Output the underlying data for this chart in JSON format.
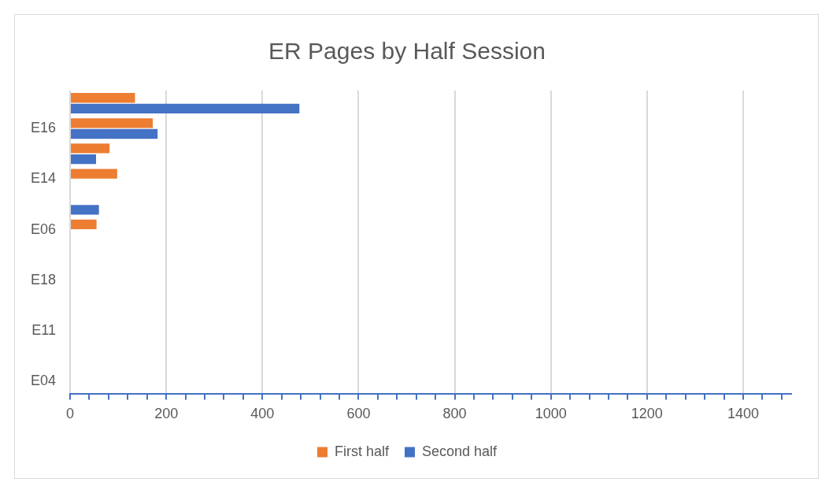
{
  "chart_data": {
    "type": "bar",
    "orientation": "horizontal",
    "title": "ER Pages by Half Session",
    "categories": [
      null,
      "E16",
      null,
      "E14",
      null,
      "E06",
      null,
      "E18",
      null,
      "E11",
      null,
      "E04"
    ],
    "series": [
      {
        "name": "First half",
        "color": "#ed7d31",
        "values": [
          135,
          172,
          82,
          98,
          null,
          55,
          null,
          null,
          null,
          null,
          null,
          null
        ]
      },
      {
        "name": "Second half",
        "color": "#4472c4",
        "values": [
          477,
          182,
          54,
          null,
          60,
          null,
          null,
          null,
          null,
          null,
          null,
          null
        ]
      }
    ],
    "xlim": [
      0,
      1500
    ],
    "xticks": [
      0,
      {
        "value": 40,
        "label": null
      },
      {
        "value": 80,
        "label": null
      },
      {
        "value": 120,
        "label": null
      },
      {
        "value": 160,
        "label": null
      },
      200,
      {
        "value": 240,
        "label": null
      },
      {
        "value": 280,
        "label": null
      },
      {
        "value": 320,
        "label": null
      },
      {
        "value": 360,
        "label": null
      },
      400,
      {
        "value": 440,
        "label": null
      },
      {
        "value": 480,
        "label": null
      },
      {
        "value": 520,
        "label": null
      },
      {
        "value": 560,
        "label": null
      },
      600,
      {
        "value": 640,
        "label": null
      },
      {
        "value": 680,
        "label": null
      },
      {
        "value": 720,
        "label": null
      },
      {
        "value": 760,
        "label": null
      },
      800,
      {
        "value": 840,
        "label": null
      },
      {
        "value": 880,
        "label": null
      },
      {
        "value": 920,
        "label": null
      },
      {
        "value": 960,
        "label": null
      },
      1000,
      {
        "value": 1040,
        "label": null
      },
      {
        "value": 1080,
        "label": null
      },
      {
        "value": 1120,
        "label": null
      },
      {
        "value": 1160,
        "label": null
      },
      1200,
      {
        "value": 1240,
        "label": null
      },
      {
        "value": 1280,
        "label": null
      },
      {
        "value": 1320,
        "label": null
      },
      {
        "value": 1360,
        "label": null
      },
      1400,
      {
        "value": 1440,
        "label": null
      },
      {
        "value": 1480,
        "label": null
      }
    ],
    "grid": "x",
    "legend": "bottom"
  }
}
